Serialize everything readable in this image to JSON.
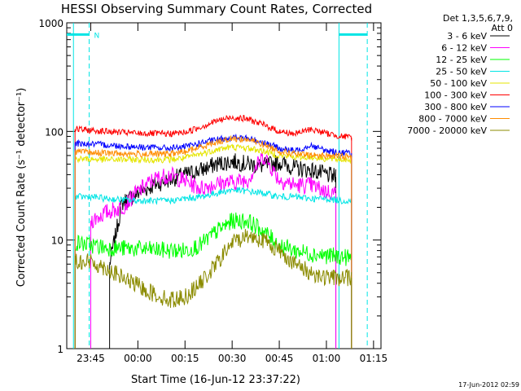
{
  "chart_data": {
    "type": "line",
    "title": "HESSI Observing Summary Count Rates, Corrected",
    "xlabel": "Start Time (16-Jun-12 23:37:22)",
    "ylabel": "Corrected Count Rate (s⁻¹ detector⁻¹)",
    "y_scale": "log",
    "ylim": [
      1,
      1000
    ],
    "xlim": [
      "23:37:22",
      "01:17:22"
    ],
    "x_ticks": [
      "23:45",
      "00:00",
      "00:15",
      "00:30",
      "00:45",
      "01:00",
      "01:15"
    ],
    "y_ticks": [
      "1",
      "10",
      "100",
      "1000"
    ],
    "legend": {
      "position": "right",
      "header": [
        "Det 1,3,5,6,7,9,",
        "Att 0"
      ]
    },
    "footer": "17-Jun-2012 02:59",
    "marker_label": "N",
    "reference_lines": [
      {
        "color": "#00e5e5",
        "style": "dashed",
        "x": "23:44:30"
      },
      {
        "color": "#00e5e5",
        "style": "solid",
        "x": "23:39:30"
      },
      {
        "color": "#00e5e5",
        "style": "solid",
        "x": "01:04:00"
      },
      {
        "color": "#00e5e5",
        "style": "dashed",
        "x": "01:13:00"
      }
    ],
    "night_bars": [
      {
        "from": "23:37:22",
        "to": "23:44:30",
        "y": 780
      },
      {
        "from": "01:04:00",
        "to": "01:13:00",
        "y": 780
      }
    ],
    "series": [
      {
        "name": "3 - 6 keV",
        "color": "#000000",
        "x": [
          "23:51",
          "23:55",
          "00:00",
          "00:05",
          "00:10",
          "00:15",
          "00:20",
          "00:25",
          "00:30",
          "00:35",
          "00:40",
          "00:45",
          "00:50",
          "00:55",
          "01:00",
          "01:03"
        ],
        "y": [
          6,
          22,
          27,
          32,
          36,
          40,
          44,
          50,
          53,
          50,
          48,
          52,
          46,
          44,
          40,
          38
        ]
      },
      {
        "name": "6 - 12 keV",
        "color": "#ff00ff",
        "x": [
          "23:45",
          "23:50",
          "23:55",
          "00:00",
          "00:05",
          "00:10",
          "00:15",
          "00:20",
          "00:25",
          "00:30",
          "00:35",
          "00:40",
          "00:45",
          "00:50",
          "00:55",
          "01:00",
          "01:03"
        ],
        "y": [
          15,
          18,
          20,
          28,
          36,
          40,
          35,
          30,
          33,
          34,
          36,
          60,
          36,
          32,
          32,
          28,
          27
        ]
      },
      {
        "name": "12 - 25 keV",
        "color": "#00ff00",
        "x": [
          "23:40",
          "23:45",
          "23:50",
          "00:00",
          "00:10",
          "00:15",
          "00:20",
          "00:25",
          "00:30",
          "00:35",
          "00:40",
          "00:45",
          "00:50",
          "00:55",
          "01:00",
          "01:05",
          "01:08"
        ],
        "y": [
          9.5,
          9.0,
          8.5,
          8.3,
          8.0,
          8.0,
          9.0,
          12,
          15,
          15,
          12,
          9,
          8,
          7.5,
          7.2,
          7.0,
          6.8
        ]
      },
      {
        "name": "25 - 50 keV",
        "color": "#00e5e5",
        "x": [
          "23:40",
          "23:45",
          "23:50",
          "00:00",
          "00:10",
          "00:15",
          "00:20",
          "00:25",
          "00:30",
          "00:35",
          "00:40",
          "00:45",
          "00:50",
          "00:55",
          "01:00",
          "01:05",
          "01:08"
        ],
        "y": [
          25,
          25,
          24,
          23,
          23,
          24,
          25,
          27,
          29,
          28,
          27,
          25,
          25,
          24,
          24,
          23,
          23
        ]
      },
      {
        "name": "50 - 100 keV",
        "color": "#e5e500",
        "x": [
          "23:40",
          "23:50",
          "00:00",
          "00:10",
          "00:15",
          "00:20",
          "00:25",
          "00:30",
          "00:35",
          "00:40",
          "00:45",
          "00:50",
          "00:55",
          "01:00",
          "01:05",
          "01:08"
        ],
        "y": [
          56,
          55,
          55,
          55,
          57,
          62,
          68,
          72,
          70,
          66,
          60,
          58,
          58,
          56,
          55,
          55
        ]
      },
      {
        "name": "100 - 300 keV",
        "color": "#ff0000",
        "x": [
          "23:40",
          "23:50",
          "00:00",
          "00:10",
          "00:15",
          "00:20",
          "00:25",
          "00:30",
          "00:35",
          "00:40",
          "00:45",
          "00:50",
          "00:55",
          "01:00",
          "01:05",
          "01:08"
        ],
        "y": [
          105,
          100,
          96,
          95,
          98,
          110,
          125,
          135,
          130,
          115,
          100,
          95,
          105,
          96,
          90,
          88
        ]
      },
      {
        "name": "300 - 800 keV",
        "color": "#0000ff",
        "x": [
          "23:40",
          "23:50",
          "00:00",
          "00:10",
          "00:15",
          "00:20",
          "00:25",
          "00:30",
          "00:35",
          "00:40",
          "00:45",
          "00:50",
          "00:55",
          "01:00",
          "01:05",
          "01:08"
        ],
        "y": [
          78,
          75,
          72,
          70,
          72,
          78,
          84,
          88,
          86,
          80,
          70,
          66,
          75,
          66,
          64,
          63
        ]
      },
      {
        "name": "800 - 7000 keV",
        "color": "#ff8c00",
        "x": [
          "23:40",
          "23:50",
          "00:00",
          "00:10",
          "00:15",
          "00:20",
          "00:25",
          "00:30",
          "00:35",
          "00:40",
          "00:45",
          "00:50",
          "00:55",
          "01:00",
          "01:05",
          "01:08"
        ],
        "y": [
          65,
          63,
          62,
          62,
          65,
          72,
          80,
          86,
          84,
          76,
          66,
          62,
          60,
          60,
          59,
          58
        ]
      },
      {
        "name": "7000 - 20000 keV",
        "color": "#8b8b00",
        "x": [
          "23:40",
          "23:45",
          "23:50",
          "23:55",
          "00:00",
          "00:05",
          "00:10",
          "00:15",
          "00:20",
          "00:25",
          "00:30",
          "00:35",
          "00:40",
          "00:45",
          "00:50",
          "00:55",
          "01:00",
          "01:05",
          "01:08"
        ],
        "y": [
          6.5,
          6.3,
          5.5,
          4.5,
          3.8,
          3.2,
          2.8,
          3.0,
          4.0,
          6.0,
          9.5,
          11,
          10,
          8,
          6,
          5,
          4.5,
          4.5,
          4.5
        ]
      }
    ]
  }
}
